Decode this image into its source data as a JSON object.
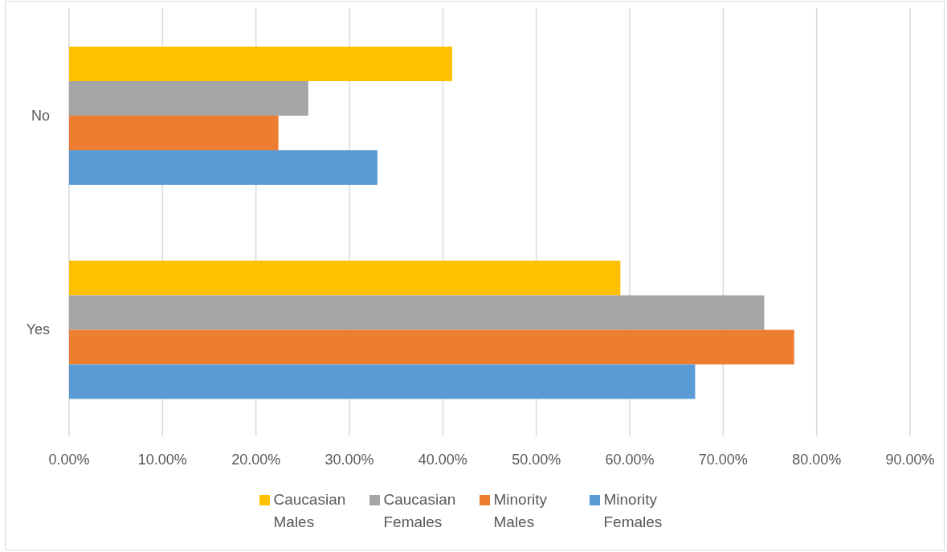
{
  "chart_data": {
    "type": "bar",
    "orientation": "horizontal",
    "categories": [
      "No",
      "Yes"
    ],
    "series": [
      {
        "name": "Caucasian Males",
        "color": "#ffc000",
        "values": [
          41.0,
          59.0
        ]
      },
      {
        "name": "Caucasian Females",
        "color": "#a5a5a5",
        "values": [
          25.6,
          74.4
        ]
      },
      {
        "name": "Minority Males",
        "color": "#ed7d31",
        "values": [
          22.4,
          77.6
        ]
      },
      {
        "name": "Minority Females",
        "color": "#5b9bd5",
        "values": [
          33.0,
          67.0
        ]
      }
    ],
    "xlim": [
      0,
      90
    ],
    "xticks": [
      {
        "value": 0,
        "label": "0.00%"
      },
      {
        "value": 10,
        "label": "10.00%"
      },
      {
        "value": 20,
        "label": "20.00%"
      },
      {
        "value": 30,
        "label": "30.00%"
      },
      {
        "value": 40,
        "label": "40.00%"
      },
      {
        "value": 50,
        "label": "50.00%"
      },
      {
        "value": 60,
        "label": "60.00%"
      },
      {
        "value": 70,
        "label": "70.00%"
      },
      {
        "value": 80,
        "label": "80.00%"
      },
      {
        "value": 90,
        "label": "90.00%"
      }
    ],
    "grid": "x",
    "legend": "bottom"
  }
}
